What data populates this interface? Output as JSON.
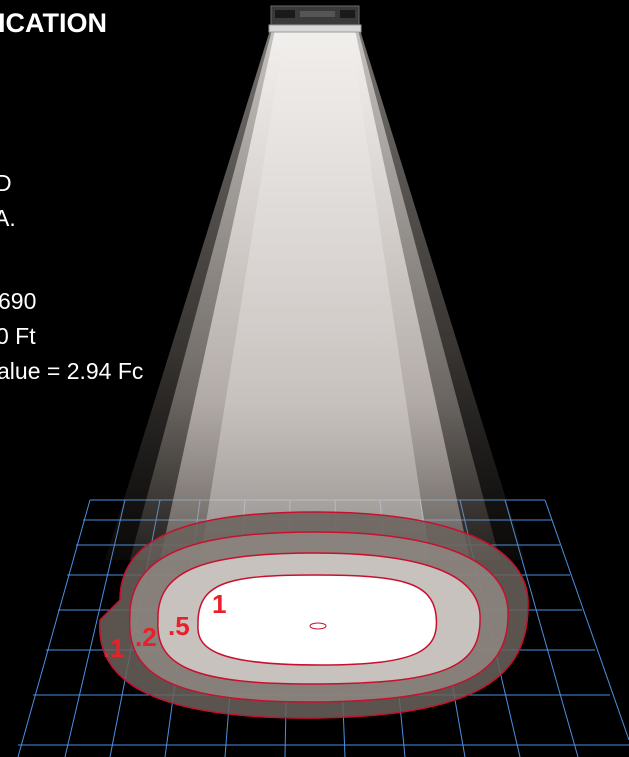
{
  "header": {
    "title": "ICATION"
  },
  "info_lines": [
    "D",
    "A.",
    "690",
    "0 Ft",
    "alue = 2.94 Fc"
  ],
  "contour_labels": [
    ".1",
    ".2",
    ".5",
    "1"
  ],
  "colors": {
    "background": "#000000",
    "grid": "#4a90e2",
    "contour_line": "#c8102e",
    "label": "#e8202a",
    "label_shadow": "#8c8c8c",
    "beam": "#d8d4d0"
  },
  "icons": {
    "fixture": "light-fixture-icon"
  }
}
